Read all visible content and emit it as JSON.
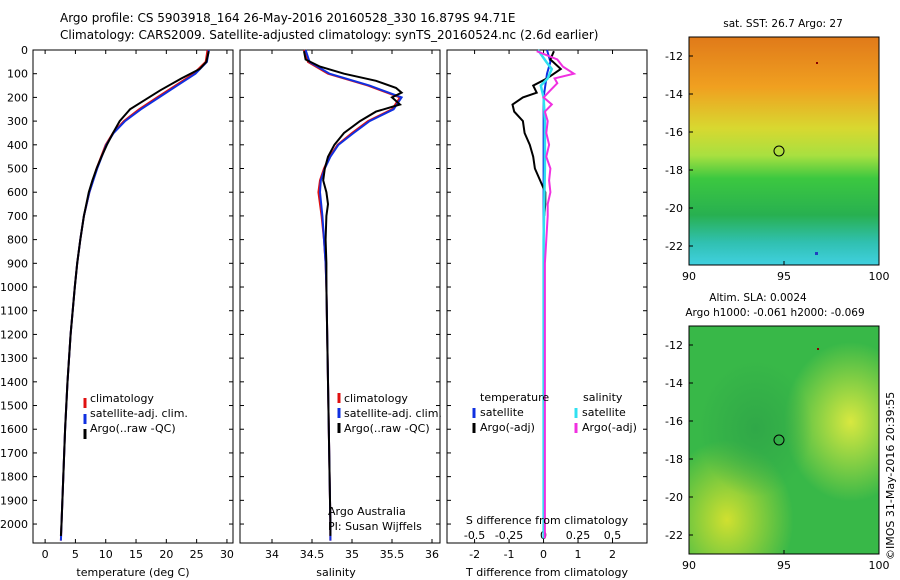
{
  "title_line1": "Argo profile: CS 5903918_164 26-May-2016 20160528_330 16.879S 94.71E",
  "title_line2": "Climatology: CARS2009. Satellite-adjusted climatology: synTS_20160524.nc (2.6d earlier)",
  "colors": {
    "clim": "#e01010",
    "sat": "#1030e0",
    "argo": "#000000",
    "sat_s": "#30e0f0",
    "argo_s": "#f030e0"
  },
  "legend1": {
    "clim": "climatology",
    "sat": "satellite-adj. clim.",
    "argo": "Argo(..raw -QC)"
  },
  "legend2": {
    "clim": "climatology",
    "sat": "satellite-adj. clim.",
    "argo": "Argo(..raw -QC)"
  },
  "legend3": {
    "temp_head": "temperature",
    "sal_head": "salinity",
    "sat": "satellite",
    "argo": "Argo(-adj)",
    "sat2": "satellite",
    "argo2": "Argo(-adj)"
  },
  "credit": {
    "line1": "Argo Australia",
    "line2": "PI: Susan Wijffels"
  },
  "map1": {
    "title": "sat. SST: 26.7 Argo: 27",
    "xticks": [
      "90",
      "95",
      "100"
    ],
    "yticks": [
      "-12",
      "-14",
      "-16",
      "-18",
      "-20",
      "-22"
    ]
  },
  "map2": {
    "title1": "Altim. SLA: 0.0024",
    "title2": "Argo h1000: -0.061 h2000: -0.069",
    "xticks": [
      "90",
      "95",
      "100"
    ],
    "yticks": [
      "-12",
      "-14",
      "-16",
      "-18",
      "-20",
      "-22"
    ]
  },
  "watermark": "©IMOS 31-May-2016 20:39:55",
  "chart_data": [
    {
      "type": "line",
      "title": "",
      "xlabel": "temperature (deg C)",
      "ylabel": "",
      "xlim": [
        -2,
        31
      ],
      "ylim": [
        2080,
        0
      ],
      "xticks": [
        0,
        5,
        10,
        15,
        20,
        25,
        30
      ],
      "yticks": [
        0,
        100,
        200,
        300,
        400,
        500,
        600,
        700,
        800,
        900,
        1000,
        1100,
        1200,
        1300,
        1400,
        1500,
        1600,
        1700,
        1800,
        1900,
        2000
      ],
      "series": [
        {
          "name": "climatology",
          "depth": [
            0,
            50,
            100,
            150,
            200,
            250,
            300,
            350,
            400,
            500,
            600,
            700,
            800,
            900,
            1000,
            1200,
            1400,
            1600,
            1800,
            2000,
            2070
          ],
          "values": [
            26.8,
            26.5,
            24.5,
            21.5,
            18.5,
            15.5,
            13.0,
            11.2,
            10.0,
            8.5,
            7.3,
            6.4,
            5.8,
            5.3,
            4.9,
            4.2,
            3.7,
            3.3,
            3.0,
            2.7,
            2.6
          ]
        },
        {
          "name": "satellite-adj. clim.",
          "depth": [
            0,
            50,
            100,
            150,
            200,
            250,
            300,
            350,
            400,
            500,
            600,
            700,
            800,
            900,
            1000,
            1200,
            1400,
            1600,
            1800,
            2000,
            2070
          ],
          "values": [
            27.0,
            26.7,
            24.8,
            21.8,
            18.8,
            15.8,
            13.2,
            11.3,
            10.1,
            8.6,
            7.3,
            6.4,
            5.8,
            5.3,
            4.9,
            4.2,
            3.7,
            3.3,
            3.0,
            2.7,
            2.6
          ]
        },
        {
          "name": "Argo(..raw -QC)",
          "depth": [
            5,
            50,
            80,
            120,
            170,
            210,
            250,
            300,
            350,
            400,
            450,
            500,
            550,
            600,
            700,
            800,
            900,
            1000,
            1200,
            1400,
            1600,
            1800,
            2000,
            2050
          ],
          "values": [
            27.0,
            26.6,
            25.5,
            22.5,
            19.0,
            16.5,
            14.0,
            12.3,
            11.2,
            10.2,
            9.3,
            8.5,
            7.8,
            7.2,
            6.4,
            5.8,
            5.3,
            4.9,
            4.2,
            3.7,
            3.3,
            3.0,
            2.7,
            2.6
          ]
        }
      ]
    },
    {
      "type": "line",
      "title": "",
      "xlabel": "salinity",
      "ylabel": "",
      "xlim": [
        33.6,
        36.1
      ],
      "ylim": [
        2080,
        0
      ],
      "xticks": [
        34,
        34.5,
        35,
        35.5,
        36
      ],
      "series": [
        {
          "name": "climatology",
          "depth": [
            0,
            50,
            100,
            150,
            200,
            250,
            300,
            350,
            400,
            450,
            500,
            550,
            600,
            700,
            800,
            900,
            1000,
            1200,
            1400,
            1600,
            1800,
            2000,
            2070
          ],
          "values": [
            34.4,
            34.45,
            34.7,
            35.2,
            35.6,
            35.5,
            35.2,
            35.0,
            34.82,
            34.72,
            34.65,
            34.6,
            34.58,
            34.62,
            34.65,
            34.67,
            34.68,
            34.69,
            34.7,
            34.71,
            34.72,
            34.73,
            34.73
          ]
        },
        {
          "name": "satellite-adj. clim.",
          "depth": [
            0,
            50,
            100,
            150,
            200,
            250,
            300,
            350,
            400,
            450,
            500,
            550,
            600,
            700,
            800,
            900,
            1000,
            1200,
            1400,
            1600,
            1800,
            2000,
            2070
          ],
          "values": [
            34.42,
            34.47,
            34.72,
            35.22,
            35.62,
            35.52,
            35.22,
            35.02,
            34.83,
            34.73,
            34.66,
            34.61,
            34.6,
            34.63,
            34.65,
            34.67,
            34.68,
            34.69,
            34.7,
            34.71,
            34.72,
            34.73,
            34.73
          ]
        },
        {
          "name": "Argo(..raw -QC)",
          "depth": [
            5,
            40,
            70,
            100,
            130,
            160,
            180,
            200,
            230,
            260,
            300,
            350,
            400,
            450,
            500,
            550,
            600,
            650,
            700,
            800,
            900,
            1000,
            1200,
            1400,
            1600,
            1800,
            2000,
            2050
          ],
          "values": [
            34.4,
            34.42,
            34.6,
            34.9,
            35.3,
            35.55,
            35.62,
            35.5,
            35.6,
            35.3,
            35.1,
            34.9,
            34.78,
            34.7,
            34.66,
            34.64,
            34.68,
            34.7,
            34.68,
            34.67,
            34.68,
            34.68,
            34.69,
            34.7,
            34.71,
            34.72,
            34.73,
            34.73
          ]
        }
      ]
    },
    {
      "type": "line",
      "title": "",
      "xlabel": "T difference from climatology",
      "xlabel_top": "S difference from climatology",
      "ylabel": "",
      "xlim": [
        -2.8,
        3.0
      ],
      "ylim": [
        2080,
        0
      ],
      "xticks": [
        -2,
        -1,
        0,
        1,
        2
      ],
      "xticks_top": [
        "-0.5",
        "-0.25",
        "0",
        "0.25",
        "0.5"
      ],
      "series": [
        {
          "name": "temperature satellite",
          "depth": [
            0,
            50,
            100,
            150,
            200,
            300,
            400,
            500,
            600,
            700,
            800,
            1000,
            1500,
            2000,
            2060
          ],
          "values": [
            0.1,
            0.2,
            0.1,
            0.05,
            0.0,
            0.0,
            0.0,
            0.0,
            0.0,
            0.0,
            0.0,
            0.0,
            0.0,
            0.0,
            0.0
          ]
        },
        {
          "name": "temperature Argo(-adj)",
          "depth": [
            5,
            40,
            80,
            120,
            150,
            180,
            200,
            230,
            260,
            300,
            350,
            400,
            450,
            500,
            550,
            600,
            650,
            700
          ],
          "values": [
            0.3,
            0.2,
            0.5,
            0.1,
            -0.3,
            -0.2,
            -0.6,
            -0.9,
            -0.85,
            -0.6,
            -0.55,
            -0.4,
            -0.3,
            -0.25,
            -0.1,
            0.05,
            0.05,
            0.02
          ]
        },
        {
          "name": "salinity satellite",
          "depth": [
            0,
            50,
            80,
            120,
            150,
            200,
            300,
            500,
            800,
            1200,
            1600,
            2000,
            2060
          ],
          "values": [
            -0.04,
            0.02,
            0.06,
            0.03,
            -0.02,
            0.0,
            0.01,
            0.01,
            0.0,
            0.0,
            0.0,
            0.0,
            0.0
          ]
        },
        {
          "name": "salinity Argo(-adj)",
          "depth": [
            5,
            40,
            70,
            100,
            120,
            140,
            170,
            200,
            230,
            260,
            300,
            350,
            400,
            450,
            500,
            550,
            600,
            650,
            700,
            800,
            900,
            1000,
            1200,
            1500,
            1800,
            2000,
            2060
          ],
          "values": [
            -0.05,
            0.1,
            0.14,
            0.22,
            0.08,
            0.1,
            0.05,
            0.0,
            0.06,
            0.01,
            0.03,
            0.02,
            0.04,
            0.02,
            0.05,
            0.04,
            0.05,
            0.03,
            0.03,
            0.02,
            0.01,
            0.01,
            0.01,
            0.01,
            0.01,
            0.01,
            0.01
          ]
        }
      ]
    },
    {
      "type": "heatmap",
      "title": "sat. SST: 26.7 Argo: 27",
      "xlim": [
        90,
        100
      ],
      "ylim": [
        -23,
        -11
      ],
      "argo_position": [
        94.71,
        -16.879
      ]
    },
    {
      "type": "heatmap",
      "title": "Altim. SLA: 0.0024",
      "xlim": [
        90,
        100
      ],
      "ylim": [
        -23,
        -11
      ],
      "argo_position": [
        94.71,
        -16.879
      ]
    }
  ]
}
